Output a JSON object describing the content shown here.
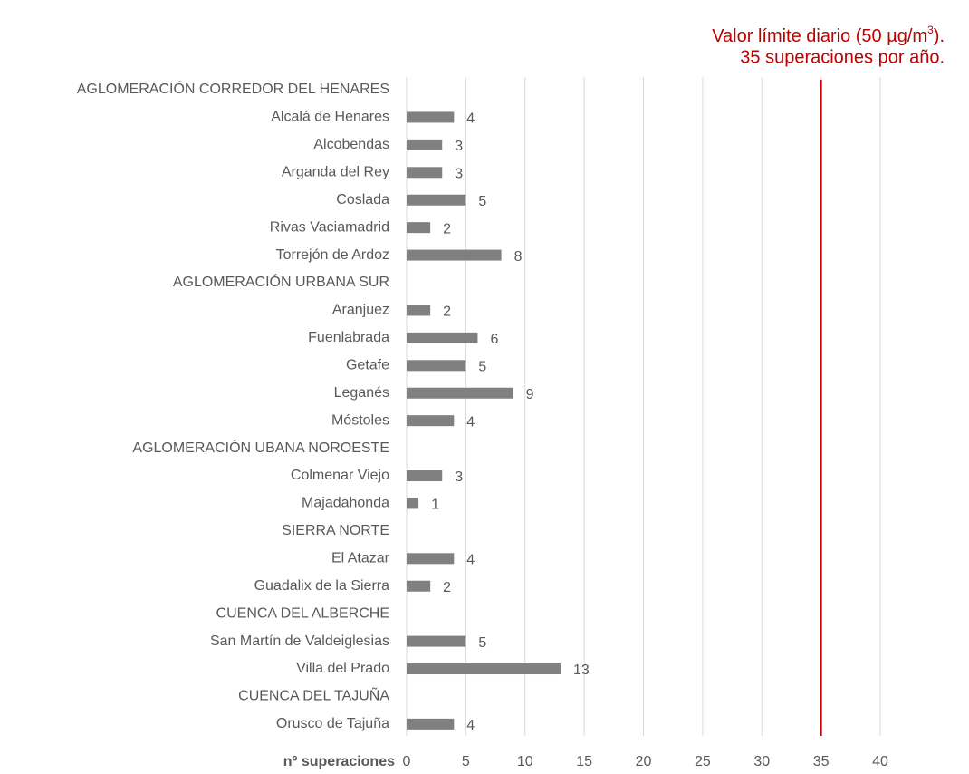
{
  "chart_data": {
    "type": "barh",
    "xlabel": "nº superaciones",
    "categories": [
      "AGLOMERACIÓN CORREDOR DEL HENARES",
      "Alcalá de Henares",
      "Alcobendas",
      "Arganda del Rey",
      "Coslada",
      "Rivas Vaciamadrid",
      "Torrejón de Ardoz",
      "AGLOMERACIÓN URBANA SUR",
      "Aranjuez",
      "Fuenlabrada",
      "Getafe",
      "Leganés",
      "Móstoles",
      "AGLOMERACIÓN UBANA NOROESTE",
      "Colmenar Viejo",
      "Majadahonda",
      "SIERRA NORTE",
      "El Atazar",
      "Guadalix de la Sierra",
      "CUENCA DEL ALBERCHE",
      "San Martín de Valdeiglesias",
      "Villa del Prado",
      "CUENCA DEL TAJUÑA",
      "Orusco de Tajuña"
    ],
    "values": [
      null,
      4,
      3,
      3,
      5,
      2,
      8,
      null,
      2,
      6,
      5,
      9,
      4,
      null,
      3,
      1,
      null,
      4,
      2,
      null,
      5,
      13,
      null,
      4
    ],
    "color": "#808080",
    "xlim": [
      0,
      40
    ],
    "xticks": [
      0,
      5,
      10,
      15,
      20,
      25,
      30,
      35,
      40
    ],
    "grid": true,
    "reference_line": {
      "value": 35,
      "color": "#c00000",
      "label_line1": [
        "Valor límite diario (50 µg/m",
        "3",
        ")."
      ],
      "label_line2": "35 superaciones por año."
    }
  }
}
